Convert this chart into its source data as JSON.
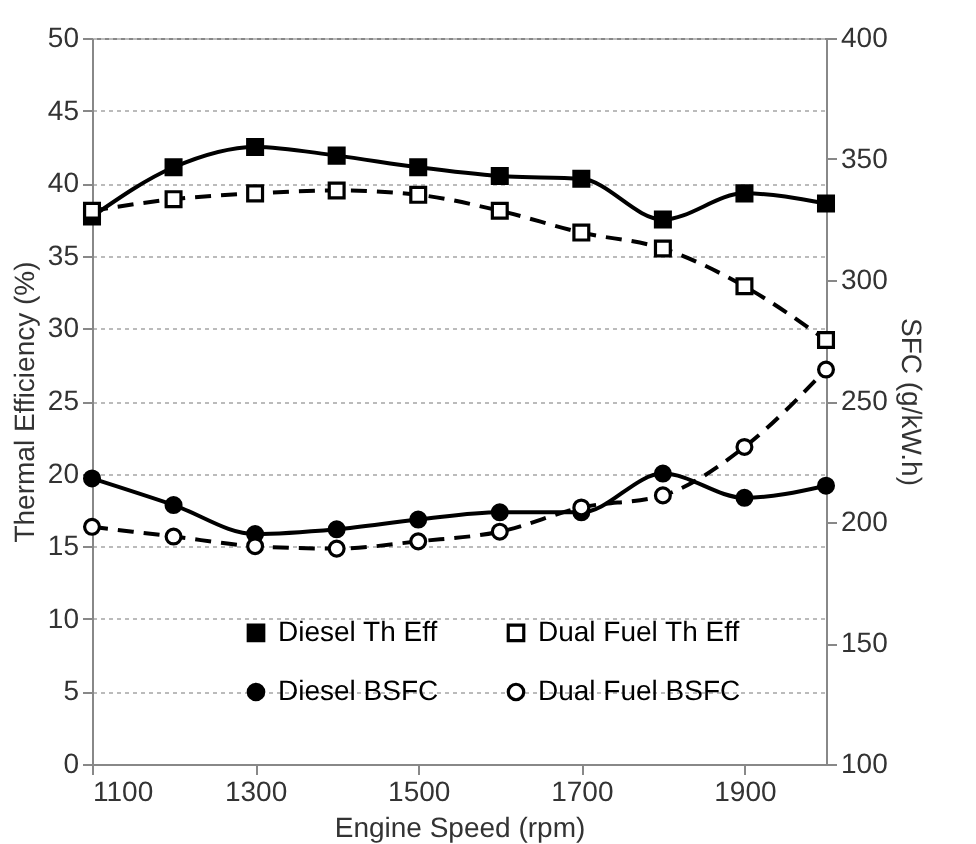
{
  "chart_data": {
    "type": "line",
    "xlabel": "Engine Speed (rpm)",
    "ylabel": "Thermal Efficiency (%)",
    "y2label": "SFC (g/kW.h)",
    "x": [
      1100,
      1200,
      1300,
      1400,
      1500,
      1600,
      1700,
      1800,
      1900,
      2000
    ],
    "series": [
      {
        "name": "Diesel Th Eff",
        "color": "#000000",
        "marker": "square",
        "line_style": "solid",
        "values": [
          37.7,
          41.1,
          42.5,
          41.9,
          41.1,
          40.5,
          40.3,
          37.5,
          39.3,
          38.6
        ]
      },
      {
        "name": "Dual Fuel Th Eff",
        "color": "#000000",
        "marker": "square",
        "line_style": "dashed",
        "values": [
          38.1,
          38.9,
          39.3,
          39.5,
          39.2,
          38.1,
          36.6,
          35.5,
          32.9,
          29.2
        ]
      },
      {
        "name": "Diesel BSFC",
        "color": "#000000",
        "marker": "circle",
        "line_style": "solid",
        "axis": "y2",
        "values": [
          218,
          207,
          195,
          197,
          201,
          204,
          204,
          220,
          210,
          215
        ]
      },
      {
        "name": "Dual Fuel BSFC",
        "color": "#000000",
        "marker": "circle",
        "line_style": "dashed",
        "axis": "y2",
        "values": [
          198,
          194,
          190,
          189,
          192,
          196,
          206,
          211,
          231,
          263
        ]
      }
    ],
    "xlim": [
      1100,
      2000
    ],
    "xticks": [
      1100,
      1300,
      1500,
      1700,
      1900
    ],
    "ylim": [
      0,
      50
    ],
    "yticks": [
      0,
      5,
      10,
      15,
      20,
      25,
      30,
      35,
      40,
      45,
      50
    ],
    "y2lim": [
      100,
      400
    ],
    "y2ticks": [
      100,
      150,
      200,
      250,
      300,
      350,
      400
    ],
    "grid": "y",
    "legend": "bottom"
  }
}
